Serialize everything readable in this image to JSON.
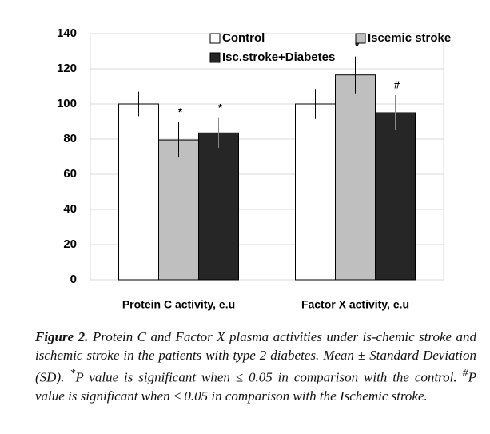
{
  "chart_data": {
    "type": "bar",
    "categories": [
      "Protein C activity, e.u",
      "Factor X activity, e.u"
    ],
    "series": [
      {
        "name": "Control",
        "color": "#ffffff",
        "values": [
          100,
          100
        ],
        "errors": [
          7,
          8.5
        ],
        "annotations": [
          null,
          null
        ]
      },
      {
        "name": "Iscemic stroke",
        "color": "#bfbfbf",
        "values": [
          79.5,
          116.5
        ],
        "errors": [
          10,
          10.5
        ],
        "annotations": [
          "*",
          "*"
        ]
      },
      {
        "name": "Isc.stroke+Diabetes",
        "color": "#262626",
        "values": [
          83.5,
          95
        ],
        "errors": [
          8.5,
          10
        ],
        "annotations": [
          "*",
          "#"
        ]
      }
    ],
    "ylim": [
      0,
      140
    ],
    "yticks": [
      0,
      20,
      40,
      60,
      80,
      100,
      120,
      140
    ],
    "grid": true,
    "legend": "top"
  },
  "caption": {
    "label": "Figure 2.",
    "parts": [
      "Protein C and Factor X plasma activities under is-chemic stroke and ischemic stroke in the patients with type 2 diabetes. Mean ± Standard Deviation (SD). ",
      "*",
      "P value is significant when ≤ 0.05 in comparison with the control. ",
      "#",
      "P value is significant when ≤ 0.05 in comparison with the Ischemic stroke."
    ]
  }
}
